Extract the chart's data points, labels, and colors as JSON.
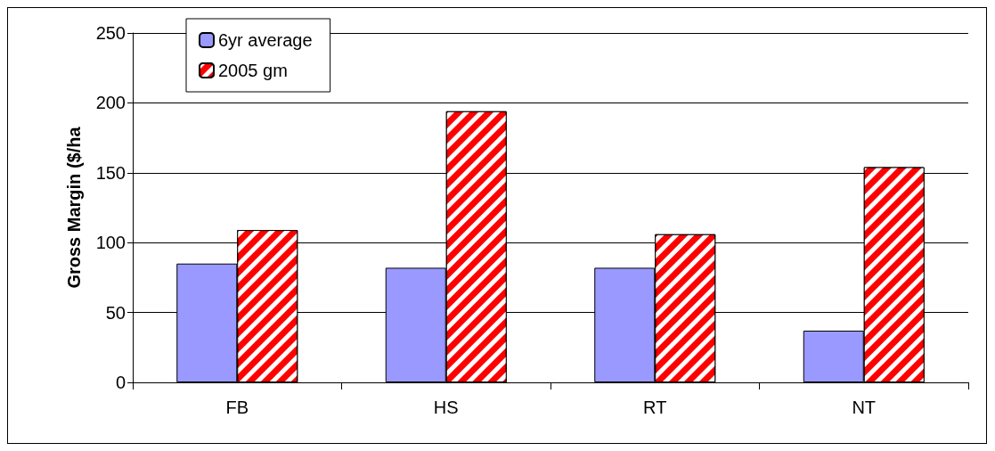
{
  "chart_data": {
    "type": "bar",
    "ylabel": "Gross Margin ($/ha",
    "categories": [
      "FB",
      "HS",
      "RT",
      "NT"
    ],
    "series": [
      {
        "name": "6yr average",
        "color": "#9999ff",
        "values": [
          85,
          82,
          82,
          37
        ]
      },
      {
        "name": "2005 gm",
        "color": "#ff0000",
        "values": [
          109,
          194,
          106,
          154
        ]
      }
    ],
    "ylim": [
      0,
      250
    ],
    "yticks": [
      0,
      50,
      100,
      150,
      200,
      250
    ],
    "grid": "y",
    "legend": "top left"
  }
}
